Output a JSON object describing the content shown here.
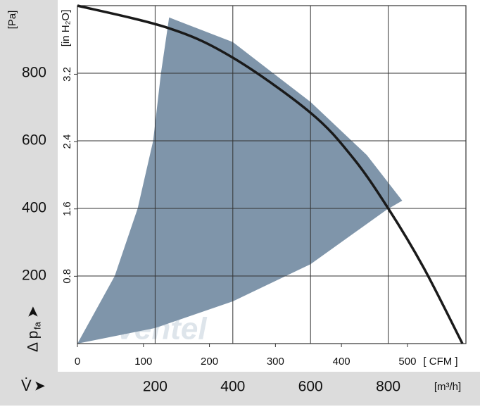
{
  "chart_data": {
    "type": "fan-curve",
    "y_unit": "[Pa]",
    "y2_unit": "[in H₂O]",
    "x_unit": "[m³/h]",
    "x2_unit": "[ CFM ]",
    "y_label": "Δ p",
    "y_label_sub": "fa",
    "x_label": "V̇",
    "watermark": "ventel",
    "xlim": [
      0,
      1000
    ],
    "xticks": [
      200,
      400,
      600,
      800
    ],
    "ylim": [
      0,
      1000
    ],
    "yticks": [
      200,
      400,
      600,
      800
    ],
    "x2lim": [
      0,
      588.6
    ],
    "x2ticks": [
      0,
      100,
      200,
      300,
      400,
      500
    ],
    "y2lim": [
      0,
      4.015
    ],
    "y2ticks": [
      0.8,
      1.6,
      2.4,
      3.2
    ],
    "grid": true,
    "range": {
      "color": "#7f95aa",
      "x": [
        0,
        96,
        155,
        195,
        215,
        236,
        400,
        600,
        745,
        836,
        796,
        600,
        400,
        200
      ],
      "y": [
        0,
        200,
        400,
        600,
        800,
        965,
        892,
        715,
        558,
        423,
        396,
        235,
        125,
        46
      ]
    },
    "series": [
      {
        "color": "#1a1a1a",
        "x": [
          0,
          236,
          400,
          600,
          709,
          800,
          891,
          991
        ],
        "values": [
          1000,
          933,
          846,
          683,
          550,
          400,
          225,
          0
        ]
      }
    ]
  }
}
